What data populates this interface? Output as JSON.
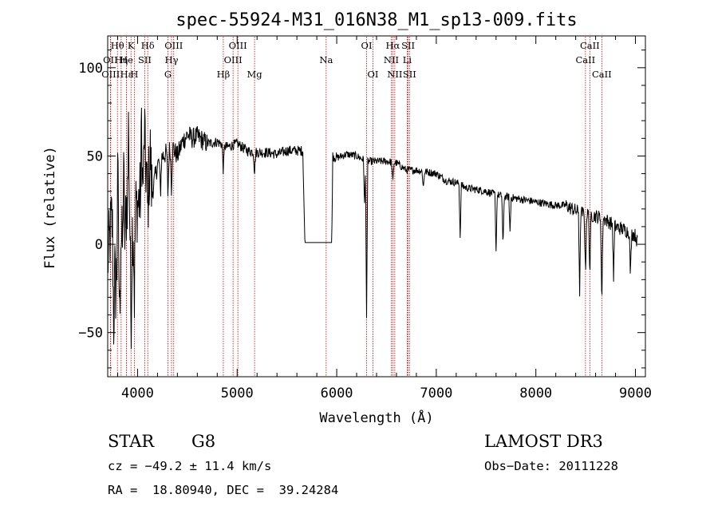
{
  "chart_data": {
    "type": "line",
    "title": "spec-55924-M31_016N38_M1_sp13-009.fits",
    "xlabel": "Wavelength (Å)",
    "ylabel": "Flux (relative)",
    "xlim": [
      3700,
      9100
    ],
    "ylim": [
      -75,
      118
    ],
    "xticks": [
      4000,
      5000,
      6000,
      7000,
      8000,
      9000
    ],
    "xtick_labels": [
      "4000",
      "5000",
      "6000",
      "7000",
      "8000",
      "9000"
    ],
    "yticks": [
      -50,
      0,
      50,
      100
    ],
    "ytick_labels": [
      "−50",
      "0",
      "50",
      "100"
    ],
    "line_markers": [
      {
        "label": "Hθ",
        "x": 3798,
        "row": 0
      },
      {
        "label": "OII",
        "x": 3727,
        "row": 1
      },
      {
        "label": "OIII",
        "x": 3730,
        "row": 2
      },
      {
        "label": "Hη",
        "x": 3835,
        "row": 1
      },
      {
        "label": "Hε",
        "x": 3889,
        "row": 2
      },
      {
        "label": "K",
        "x": 3934,
        "row": 0
      },
      {
        "label": "He",
        "x": 3889,
        "row": 1
      },
      {
        "label": "H",
        "x": 3968,
        "row": 2
      },
      {
        "label": "SII",
        "x": 4072,
        "row": 1
      },
      {
        "label": "Hδ",
        "x": 4102,
        "row": 0
      },
      {
        "label": "OIII",
        "x": 4363,
        "row": 0
      },
      {
        "label": "Hγ",
        "x": 4341,
        "row": 1
      },
      {
        "label": "G",
        "x": 4305,
        "row": 2
      },
      {
        "label": "Hβ",
        "x": 4861,
        "row": 2
      },
      {
        "label": "OIII",
        "x": 5007,
        "row": 0
      },
      {
        "label": "OIII",
        "x": 4959,
        "row": 1
      },
      {
        "label": "Mg",
        "x": 5175,
        "row": 2
      },
      {
        "label": "Na",
        "x": 5894,
        "row": 1
      },
      {
        "label": "OI",
        "x": 6300,
        "row": 0
      },
      {
        "label": "OI",
        "x": 6364,
        "row": 2
      },
      {
        "label": "Hα",
        "x": 6563,
        "row": 0
      },
      {
        "label": "NII",
        "x": 6548,
        "row": 1
      },
      {
        "label": "NII",
        "x": 6583,
        "row": 2
      },
      {
        "label": "SII",
        "x": 6717,
        "row": 0
      },
      {
        "label": "Li",
        "x": 6708,
        "row": 1
      },
      {
        "label": "SII",
        "x": 6731,
        "row": 2
      },
      {
        "label": "CaII",
        "x": 8542,
        "row": 0
      },
      {
        "label": "CaII",
        "x": 8498,
        "row": 1
      },
      {
        "label": "CaII",
        "x": 8662,
        "row": 2
      }
    ],
    "spectrum_anchors": {
      "x": [
        3700,
        3740,
        3780,
        3820,
        3860,
        3900,
        3940,
        3980,
        4020,
        4060,
        4100,
        4150,
        4200,
        4250,
        4300,
        4350,
        4400,
        4450,
        4500,
        4550,
        4600,
        4700,
        4800,
        4900,
        5000,
        5100,
        5200,
        5300,
        5400,
        5500,
        5600,
        5660,
        5680,
        5700,
        5950,
        5960,
        6000,
        6100,
        6200,
        6300,
        6400,
        6500,
        6600,
        6700,
        6800,
        6900,
        7000,
        7100,
        7200,
        7300,
        7400,
        7500,
        7600,
        7700,
        7800,
        7900,
        8000,
        8100,
        8200,
        8300,
        8400,
        8500,
        8600,
        8700,
        8800,
        8900,
        9000,
        9020
      ],
      "y": [
        -10,
        15,
        -25,
        10,
        -5,
        30,
        5,
        20,
        25,
        40,
        45,
        30,
        45,
        50,
        52,
        55,
        50,
        58,
        62,
        60,
        61,
        57,
        58,
        55,
        57,
        53,
        52,
        52,
        51,
        53,
        53,
        53,
        1,
        1,
        1,
        50,
        49,
        51,
        50,
        47,
        47,
        47,
        46,
        42,
        42,
        41,
        40,
        36,
        35,
        32,
        31,
        30,
        28,
        27,
        26,
        25,
        24,
        23,
        22,
        22,
        19,
        17,
        16,
        14,
        10,
        8,
        5,
        1
      ]
    },
    "absorption_dips": [
      {
        "x": 3760,
        "depth": 40
      },
      {
        "x": 3820,
        "depth": 50
      },
      {
        "x": 3934,
        "depth": 55
      },
      {
        "x": 3968,
        "depth": 45
      },
      {
        "x": 4102,
        "depth": 30
      },
      {
        "x": 4230,
        "depth": 20
      },
      {
        "x": 4305,
        "depth": 25
      },
      {
        "x": 4340,
        "depth": 22
      },
      {
        "x": 4861,
        "depth": 15
      },
      {
        "x": 5175,
        "depth": 12
      },
      {
        "x": 6280,
        "depth": 25
      },
      {
        "x": 6300,
        "depth": 88
      },
      {
        "x": 6563,
        "depth": 12
      },
      {
        "x": 6870,
        "depth": 10
      },
      {
        "x": 7240,
        "depth": 30
      },
      {
        "x": 7600,
        "depth": 32
      },
      {
        "x": 7670,
        "depth": 30
      },
      {
        "x": 7740,
        "depth": 20
      },
      {
        "x": 8440,
        "depth": 45
      },
      {
        "x": 8498,
        "depth": 35
      },
      {
        "x": 8542,
        "depth": 35
      },
      {
        "x": 8662,
        "depth": 50
      },
      {
        "x": 8780,
        "depth": 30
      },
      {
        "x": 8950,
        "depth": 25
      }
    ],
    "upward_spikes": [
      {
        "x": 3800,
        "height": 65
      },
      {
        "x": 3860,
        "height": 60
      },
      {
        "x": 3910,
        "height": 55
      },
      {
        "x": 4040,
        "height": 40
      },
      {
        "x": 4070,
        "height": 30
      },
      {
        "x": 4130,
        "height": 20
      }
    ]
  },
  "info": {
    "object_class": "STAR",
    "subclass": "G8",
    "survey": "LAMOST DR3",
    "cz": "cz = −49.2 ± 11.4 km/s",
    "obs_date": "Obs−Date: 20111228",
    "coords": "RA =  18.80940, DEC =  39.24284"
  },
  "colors": {
    "line_marker": "#cc0000",
    "spectrum": "#000000"
  }
}
